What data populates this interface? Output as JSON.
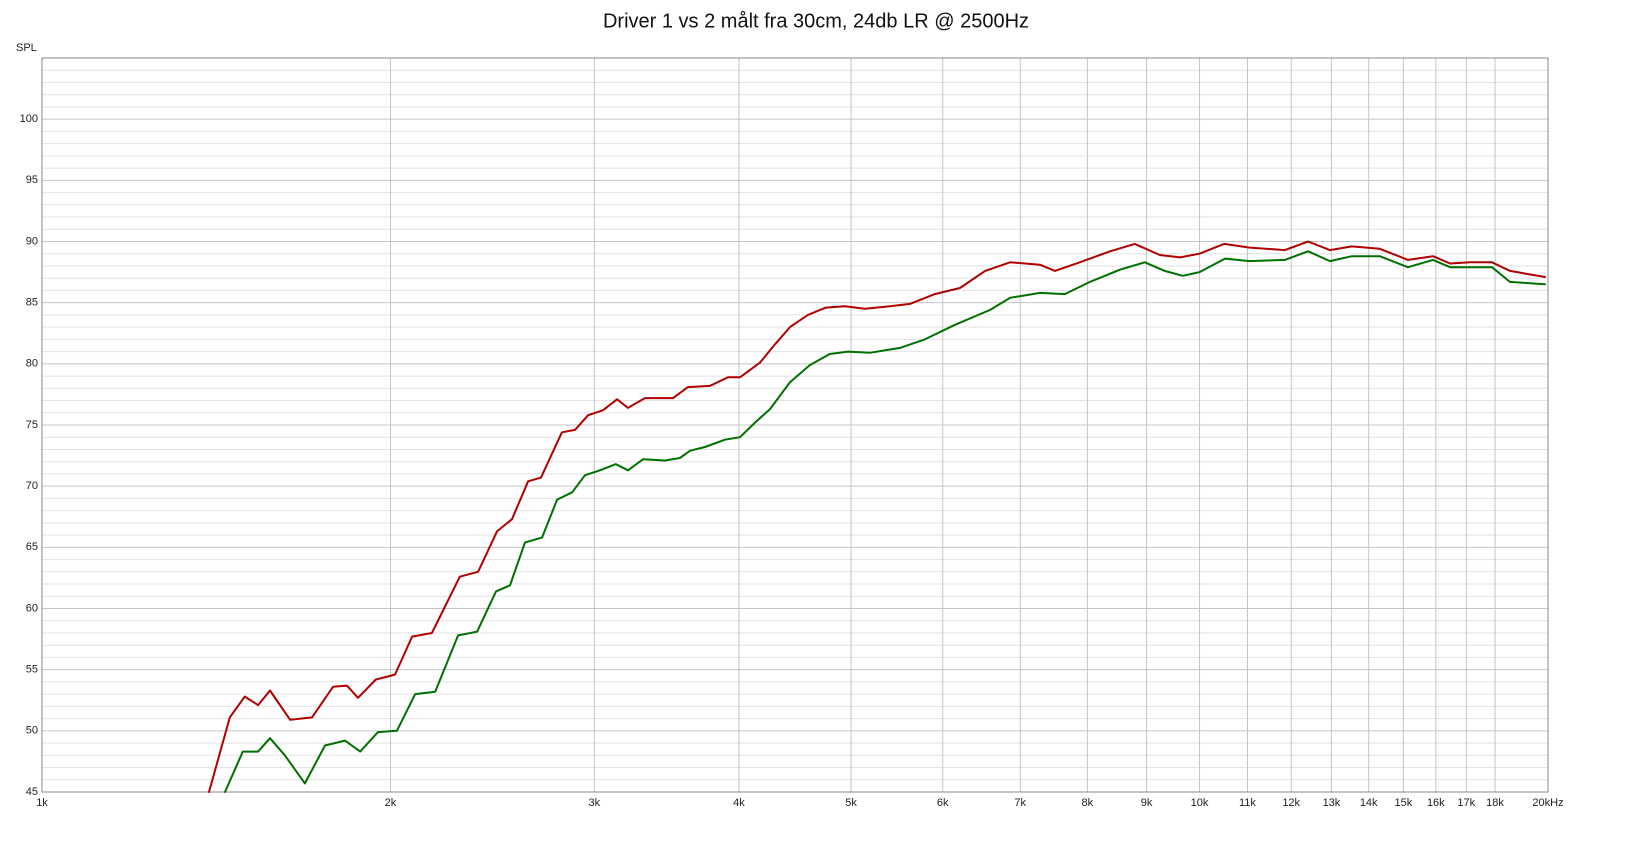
{
  "chart_data": {
    "type": "line",
    "title": "Driver 1 vs 2 målt fra 30cm, 24db LR @ 2500Hz",
    "ylabel": "SPL",
    "xscale": "log",
    "xlim": [
      1000,
      20000
    ],
    "ylim": [
      45,
      105
    ],
    "xticks": [
      {
        "value": 1000,
        "label": "1k"
      },
      {
        "value": 2000,
        "label": "2k"
      },
      {
        "value": 3000,
        "label": "3k"
      },
      {
        "value": 4000,
        "label": "4k"
      },
      {
        "value": 5000,
        "label": "5k"
      },
      {
        "value": 6000,
        "label": "6k"
      },
      {
        "value": 7000,
        "label": "7k"
      },
      {
        "value": 8000,
        "label": "8k"
      },
      {
        "value": 9000,
        "label": "9k"
      },
      {
        "value": 10000,
        "label": "10k"
      },
      {
        "value": 11000,
        "label": "11k"
      },
      {
        "value": 12000,
        "label": "12k"
      },
      {
        "value": 13000,
        "label": "13k"
      },
      {
        "value": 14000,
        "label": "14k"
      },
      {
        "value": 15000,
        "label": "15k"
      },
      {
        "value": 16000,
        "label": "16k"
      },
      {
        "value": 17000,
        "label": "17k"
      },
      {
        "value": 18000,
        "label": "18k"
      },
      {
        "value": 20000,
        "label": "20kHz"
      }
    ],
    "yticks": [
      45,
      50,
      55,
      60,
      65,
      70,
      75,
      80,
      85,
      90,
      95,
      100
    ],
    "yticks_minor": [
      46,
      47,
      48,
      49,
      51,
      52,
      53,
      54,
      56,
      57,
      58,
      59,
      61,
      62,
      63,
      64,
      66,
      67,
      68,
      69,
      71,
      72,
      73,
      74,
      76,
      77,
      78,
      79,
      81,
      82,
      83,
      84,
      86,
      87,
      88,
      89,
      91,
      92,
      93,
      94,
      96,
      97,
      98,
      99,
      101,
      102,
      103,
      104
    ],
    "grid": true,
    "series": [
      {
        "color": "#b00000",
        "x": [
          1394,
          1453,
          1497,
          1537,
          1574,
          1638,
          1711,
          1784,
          1834,
          1875,
          1943,
          2018,
          2088,
          2172,
          2296,
          2381,
          2472,
          2547,
          2630,
          2698,
          2813,
          2887,
          2963,
          3052,
          3139,
          3208,
          3318,
          3419,
          3509,
          3614,
          3776,
          3913,
          4009,
          4171,
          4298,
          4428,
          4588,
          4756,
          4939,
          5140,
          5401,
          5620,
          5906,
          6209,
          6528,
          6860,
          7280,
          7500,
          7880,
          8370,
          8790,
          9240,
          9620,
          10000,
          10500,
          11050,
          11850,
          12410,
          12960,
          13540,
          14310,
          15140,
          15910,
          16460,
          17130,
          17890,
          18540,
          19880
        ],
        "values": [
          45,
          51.1,
          52.8,
          52.1,
          53.3,
          50.9,
          51.1,
          53.6,
          53.7,
          52.7,
          54.2,
          54.6,
          57.7,
          58.0,
          62.6,
          63.0,
          66.3,
          67.3,
          70.4,
          70.7,
          74.4,
          74.6,
          75.8,
          76.2,
          77.1,
          76.4,
          77.2,
          77.2,
          77.2,
          78.1,
          78.2,
          78.9,
          78.9,
          80.1,
          81.6,
          83.0,
          84.0,
          84.6,
          84.7,
          84.5,
          84.7,
          84.9,
          85.7,
          86.2,
          87.6,
          88.3,
          88.1,
          87.6,
          88.3,
          89.2,
          89.8,
          88.9,
          88.7,
          89.0,
          89.8,
          89.5,
          89.3,
          90.0,
          89.3,
          89.6,
          89.4,
          88.5,
          88.8,
          88.2,
          88.3,
          88.3,
          87.6,
          87.1
        ]
      },
      {
        "color": "#007000",
        "x": [
          1439,
          1491,
          1537,
          1574,
          1621,
          1687,
          1756,
          1827,
          1883,
          1951,
          2026,
          2101,
          2186,
          2288,
          2376,
          2467,
          2537,
          2614,
          2704,
          2786,
          2871,
          2945,
          3034,
          3132,
          3208,
          3305,
          3453,
          3557,
          3630,
          3739,
          3890,
          4009,
          4130,
          4255,
          4428,
          4606,
          4793,
          4969,
          5190,
          5510,
          5790,
          6150,
          6590,
          6860,
          7280,
          7650,
          8040,
          8540,
          8970,
          9330,
          9670,
          10000,
          10520,
          11050,
          11850,
          12410,
          12960,
          13540,
          14310,
          15140,
          15910,
          16460,
          17130,
          17890,
          18540,
          19880
        ],
        "values": [
          45,
          48.3,
          48.3,
          49.4,
          48.0,
          45.7,
          48.8,
          49.2,
          48.3,
          49.9,
          50.0,
          53.0,
          53.2,
          57.8,
          58.1,
          61.4,
          61.9,
          65.4,
          65.8,
          68.9,
          69.5,
          70.9,
          71.3,
          71.8,
          71.3,
          72.2,
          72.1,
          72.3,
          72.9,
          73.2,
          73.8,
          74.0,
          75.2,
          76.3,
          78.5,
          79.9,
          80.8,
          81.0,
          80.9,
          81.3,
          82.0,
          83.2,
          84.4,
          85.4,
          85.8,
          85.7,
          86.7,
          87.7,
          88.3,
          87.6,
          87.2,
          87.5,
          88.6,
          88.4,
          88.5,
          89.2,
          88.4,
          88.8,
          88.8,
          87.9,
          88.5,
          87.9,
          87.9,
          87.9,
          86.7,
          86.5
        ]
      }
    ]
  }
}
